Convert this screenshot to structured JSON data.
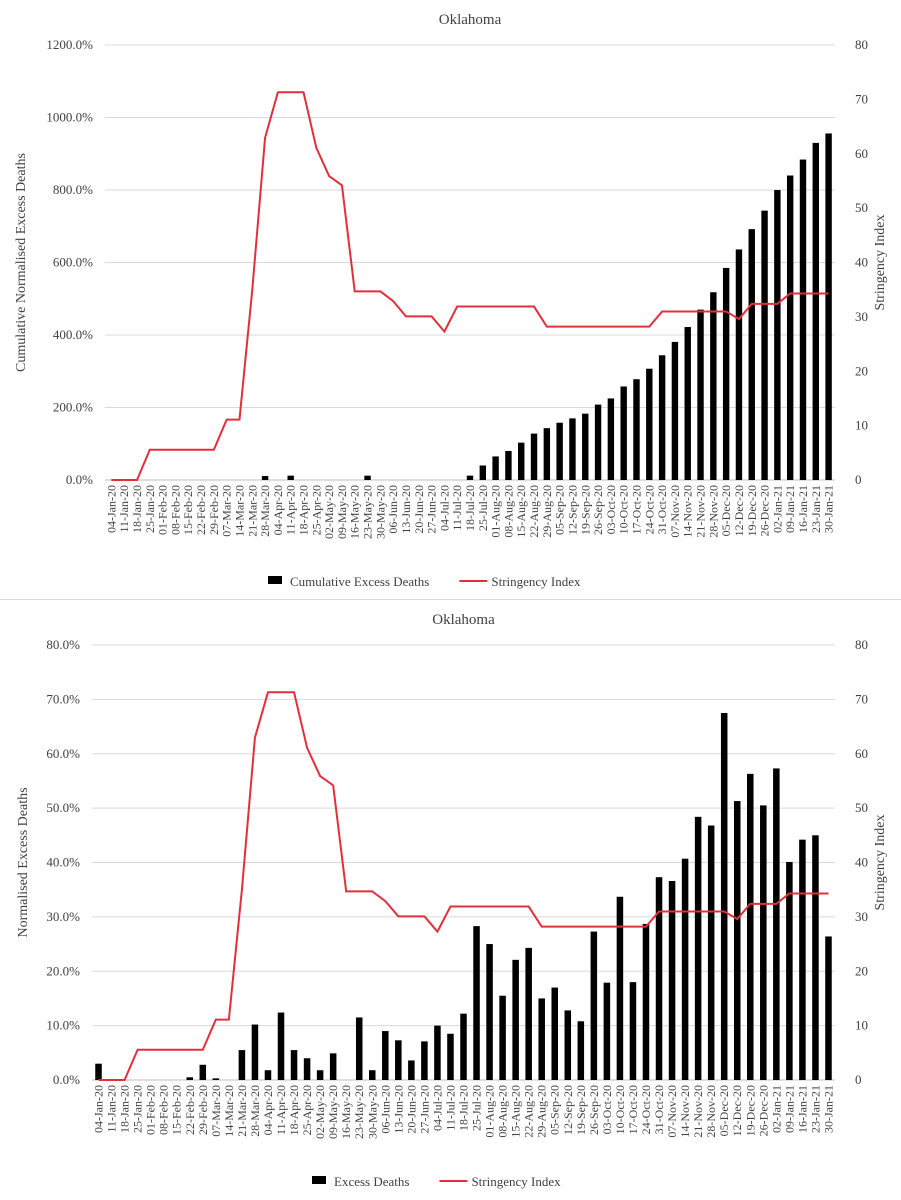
{
  "chart_data": [
    {
      "type": "bar",
      "title": "Oklahoma",
      "y_label": "Cumulative Normalised Excess Deaths",
      "y2_label": "Stringency Index",
      "categories": [
        "04-Jan-20",
        "11-Jan-20",
        "18-Jan-20",
        "25-Jan-20",
        "01-Feb-20",
        "08-Feb-20",
        "15-Feb-20",
        "22-Feb-20",
        "29-Feb-20",
        "07-Mar-20",
        "14-Mar-20",
        "21-Mar-20",
        "28-Mar-20",
        "04-Apr-20",
        "11-Apr-20",
        "18-Apr-20",
        "25-Apr-20",
        "02-May-20",
        "09-May-20",
        "16-May-20",
        "23-May-20",
        "30-May-20",
        "06-Jun-20",
        "13-Jun-20",
        "20-Jun-20",
        "27-Jun-20",
        "04-Jul-20",
        "11-Jul-20",
        "18-Jul-20",
        "25-Jul-20",
        "01-Aug-20",
        "08-Aug-20",
        "15-Aug-20",
        "22-Aug-20",
        "29-Aug-20",
        "05-Sep-20",
        "12-Sep-20",
        "19-Sep-20",
        "26-Sep-20",
        "03-Oct-20",
        "10-Oct-20",
        "17-Oct-20",
        "24-Oct-20",
        "31-Oct-20",
        "07-Nov-20",
        "14-Nov-20",
        "21-Nov-20",
        "28-Nov-20",
        "05-Dec-20",
        "12-Dec-20",
        "19-Dec-20",
        "26-Dec-20",
        "02-Jan-21",
        "09-Jan-21",
        "16-Jan-21",
        "23-Jan-21",
        "30-Jan-21"
      ],
      "series": [
        {
          "name": "Cumulative Excess Deaths",
          "type": "bar",
          "color": "#000000",
          "values": [
            0,
            0,
            0,
            0,
            0,
            0,
            0,
            0,
            0,
            0,
            0,
            0,
            11,
            0,
            12,
            0,
            0,
            0,
            0,
            0,
            12,
            0,
            0,
            0,
            0,
            0,
            0,
            0,
            12,
            40,
            65,
            80,
            103,
            128,
            143,
            158,
            170,
            183,
            208,
            225,
            258,
            278,
            307,
            344,
            381,
            422,
            470,
            518,
            585,
            636,
            692,
            743,
            800,
            840,
            884,
            930,
            956
          ]
        },
        {
          "name": "Stringency Index",
          "type": "line",
          "axis": "y2",
          "color": "#e0303c",
          "values": [
            0,
            0,
            0,
            5.56,
            5.56,
            5.56,
            5.56,
            5.56,
            5.56,
            11.11,
            11.11,
            35,
            62.96,
            71.3,
            71.3,
            71.3,
            61.1,
            55.9,
            54.2,
            34.7,
            34.7,
            34.7,
            32.9,
            30.1,
            30.1,
            30.1,
            27.3,
            31.9,
            31.9,
            31.9,
            31.9,
            31.9,
            31.9,
            31.9,
            28.2,
            28.2,
            28.2,
            28.2,
            28.2,
            28.2,
            28.2,
            28.2,
            28.2,
            31,
            31,
            31,
            31,
            31,
            31,
            29.6,
            32.4,
            32.4,
            32.4,
            34.3,
            34.3,
            34.3,
            34.3
          ]
        }
      ],
      "ylim": [
        0,
        1200
      ],
      "yticks": [
        {
          "value": 0,
          "label": "0.0%"
        },
        {
          "value": 200,
          "label": "200.0%"
        },
        {
          "value": 400,
          "label": "400.0%"
        },
        {
          "value": 600,
          "label": "600.0%"
        },
        {
          "value": 800,
          "label": "800.0%"
        },
        {
          "value": 1000,
          "label": "1000.0%"
        },
        {
          "value": 1200,
          "label": "1200.0%"
        }
      ],
      "y2lim": [
        0,
        80
      ],
      "y2ticks": [
        0,
        10,
        20,
        30,
        40,
        50,
        60,
        70,
        80
      ],
      "legend": "bottom"
    },
    {
      "type": "bar",
      "title": "Oklahoma",
      "y_label": "Normalised Excess Deaths",
      "y2_label": "Stringency Index",
      "categories": [
        "04-Jan-20",
        "11-Jan-20",
        "18-Jan-20",
        "25-Jan-20",
        "01-Feb-20",
        "08-Feb-20",
        "15-Feb-20",
        "22-Feb-20",
        "29-Feb-20",
        "07-Mar-20",
        "14-Mar-20",
        "21-Mar-20",
        "28-Mar-20",
        "04-Apr-20",
        "11-Apr-20",
        "18-Apr-20",
        "25-Apr-20",
        "02-May-20",
        "09-May-20",
        "16-May-20",
        "23-May-20",
        "30-May-20",
        "06-Jun-20",
        "13-Jun-20",
        "20-Jun-20",
        "27-Jun-20",
        "04-Jul-20",
        "11-Jul-20",
        "18-Jul-20",
        "25-Jul-20",
        "01-Aug-20",
        "08-Aug-20",
        "15-Aug-20",
        "22-Aug-20",
        "29-Aug-20",
        "05-Sep-20",
        "12-Sep-20",
        "19-Sep-20",
        "26-Sep-20",
        "03-Oct-20",
        "10-Oct-20",
        "17-Oct-20",
        "24-Oct-20",
        "31-Oct-20",
        "07-Nov-20",
        "14-Nov-20",
        "21-Nov-20",
        "28-Nov-20",
        "05-Dec-20",
        "12-Dec-20",
        "19-Dec-20",
        "26-Dec-20",
        "02-Jan-21",
        "09-Jan-21",
        "16-Jan-21",
        "23-Jan-21",
        "30-Jan-21"
      ],
      "series": [
        {
          "name": "Excess Deaths",
          "type": "bar",
          "color": "#000000",
          "values": [
            3.0,
            0,
            0,
            0,
            0,
            0,
            0,
            0.5,
            2.8,
            0.3,
            0,
            5.5,
            10.2,
            1.8,
            12.4,
            5.5,
            4.0,
            1.8,
            4.9,
            0,
            11.5,
            1.8,
            9.0,
            7.3,
            3.6,
            7.1,
            10.0,
            8.5,
            12.2,
            28.3,
            25.0,
            15.5,
            22.1,
            24.3,
            15.0,
            17.0,
            12.8,
            10.8,
            27.3,
            17.9,
            33.7,
            18.0,
            28.7,
            37.3,
            36.6,
            40.7,
            48.4,
            46.8,
            67.5,
            51.3,
            56.3,
            50.5,
            57.3,
            40.1,
            44.2,
            45.0,
            26.4
          ]
        },
        {
          "name": "Stringency Index",
          "type": "line",
          "axis": "y2",
          "color": "#e0303c",
          "values": [
            0,
            0,
            0,
            5.56,
            5.56,
            5.56,
            5.56,
            5.56,
            5.56,
            11.11,
            11.11,
            35,
            62.96,
            71.3,
            71.3,
            71.3,
            61.1,
            55.9,
            54.2,
            34.7,
            34.7,
            34.7,
            32.9,
            30.1,
            30.1,
            30.1,
            27.3,
            31.9,
            31.9,
            31.9,
            31.9,
            31.9,
            31.9,
            31.9,
            28.2,
            28.2,
            28.2,
            28.2,
            28.2,
            28.2,
            28.2,
            28.2,
            28.2,
            31,
            31,
            31,
            31,
            31,
            31,
            29.6,
            32.4,
            32.4,
            32.4,
            34.3,
            34.3,
            34.3,
            34.3
          ]
        }
      ],
      "ylim": [
        0,
        80
      ],
      "yticks": [
        {
          "value": 0,
          "label": "0.0%"
        },
        {
          "value": 10,
          "label": "10.0%"
        },
        {
          "value": 20,
          "label": "20.0%"
        },
        {
          "value": 30,
          "label": "30.0%"
        },
        {
          "value": 40,
          "label": "40.0%"
        },
        {
          "value": 50,
          "label": "50.0%"
        },
        {
          "value": 60,
          "label": "60.0%"
        },
        {
          "value": 70,
          "label": "70.0%"
        },
        {
          "value": 80,
          "label": "80.0%"
        }
      ],
      "y2lim": [
        0,
        80
      ],
      "y2ticks": [
        0,
        10,
        20,
        30,
        40,
        50,
        60,
        70,
        80
      ],
      "legend": "bottom"
    }
  ]
}
